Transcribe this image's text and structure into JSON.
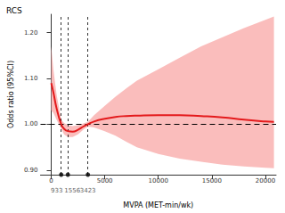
{
  "chart_data": {
    "type": "line",
    "title": "RCS",
    "x_label": "MVPA (MET-min/wk)",
    "y_label": "Odds ratio (95%CI)",
    "x": [
      0,
      200,
      500,
      933,
      1200,
      1556,
      2000,
      2500,
      3000,
      3423,
      4000,
      5000,
      6000,
      7000,
      8000,
      10000,
      12000,
      14000,
      16000,
      18000,
      20000,
      20800
    ],
    "series": [
      {
        "name": "Odds ratio",
        "color": "#e41a1c",
        "line_style": "solid",
        "values": [
          1.09,
          1.07,
          1.035,
          1.0,
          0.99,
          0.985,
          0.984,
          0.988,
          0.995,
          1.0,
          1.006,
          1.012,
          1.016,
          1.018,
          1.019,
          1.02,
          1.02,
          1.018,
          1.015,
          1.01,
          1.006,
          1.005
        ]
      }
    ],
    "ci_lower": [
      1.03,
      1.025,
      1.01,
      0.99,
      0.978,
      0.972,
      0.972,
      0.978,
      0.988,
      0.995,
      0.993,
      0.985,
      0.975,
      0.962,
      0.95,
      0.935,
      0.925,
      0.918,
      0.912,
      0.908,
      0.905,
      0.904
    ],
    "ci_upper": [
      1.17,
      1.12,
      1.065,
      1.01,
      1.003,
      0.998,
      0.996,
      0.998,
      1.002,
      1.005,
      1.02,
      1.04,
      1.06,
      1.078,
      1.095,
      1.12,
      1.145,
      1.17,
      1.19,
      1.21,
      1.228,
      1.235
    ],
    "ci_color": "#f9b2b0",
    "cut_points": [
      933,
      1556,
      3423
    ],
    "reference_y": 1,
    "xlim": [
      -1000,
      21000
    ],
    "xticks": [
      0,
      5000,
      10000,
      15000,
      20000
    ],
    "ylim": [
      0.89,
      1.24
    ],
    "yticks": [
      {
        "value": 0.9,
        "label": "0.90"
      },
      {
        "value": 1,
        "label": "1.00"
      },
      {
        "value": 1.1,
        "label": "1.10"
      },
      {
        "value": 1.2,
        "label": "1.20"
      }
    ],
    "grid": false
  }
}
